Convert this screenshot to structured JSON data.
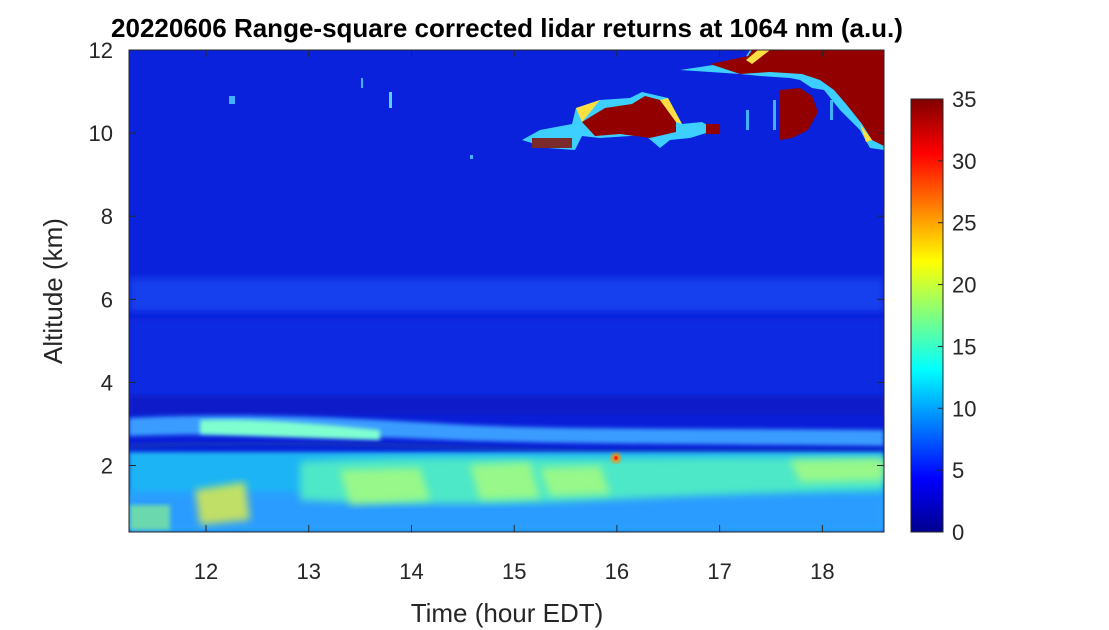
{
  "chart_data": {
    "type": "heatmap",
    "title": "20220606  Range-square corrected lidar returns at 1064 nm (a.u.)",
    "xlabel": "Time (hour EDT)",
    "ylabel": "Altitude (km)",
    "xlim": [
      11.25,
      18.6
    ],
    "ylim": [
      0.4,
      12
    ],
    "xticks": [
      "12",
      "13",
      "14",
      "15",
      "16",
      "17",
      "18"
    ],
    "yticks": [
      "2",
      "4",
      "6",
      "8",
      "10",
      "12"
    ],
    "colorbar": {
      "colormap": "jet",
      "range": [
        0,
        35
      ],
      "ticks": [
        "0",
        "5",
        "10",
        "15",
        "20",
        "25",
        "30",
        "35"
      ]
    },
    "grid": false,
    "features": {
      "boundary_layer_top_km": 3.0,
      "aerosol_layer_km": [
        2.0,
        2.9
      ],
      "residual_layer_km": 6.0,
      "cirrus_clouds_km": [
        9.5,
        12
      ],
      "cirrus_onset_hour": 15.1,
      "max_value_marker": {
        "hour": 16.0,
        "altitude_km": 2.2
      }
    }
  }
}
